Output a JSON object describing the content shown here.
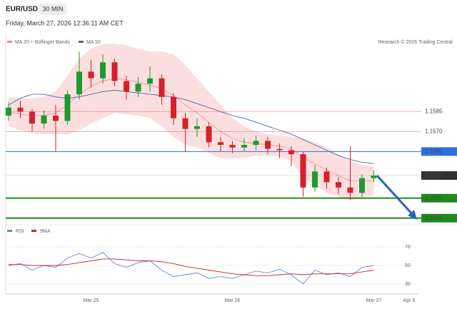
{
  "header": {
    "symbol": "EUR/USD",
    "interval": "30 MIN",
    "datetime": "Friday, March 27, 2026 12:36:11 AM CET",
    "credit": "Research © 2026 Trading Central"
  },
  "chart_data": [
    {
      "type": "candlestick",
      "categories": [
        null,
        null,
        null,
        null,
        null,
        null,
        null,
        "Mar 25",
        null,
        null,
        null,
        null,
        null,
        null,
        null,
        null,
        null,
        null,
        null,
        "Mar 26",
        null,
        null,
        null,
        null,
        null,
        null,
        null,
        null,
        null,
        null,
        null,
        "Mar 27",
        null,
        null,
        "Apr 6"
      ],
      "open": [
        1.1582,
        1.1588,
        1.1585,
        1.1576,
        1.1582,
        1.1578,
        1.1598,
        1.1615,
        1.161,
        1.1622,
        1.1608,
        1.16,
        1.1606,
        1.161,
        1.1596,
        1.158,
        1.1572,
        1.1574,
        1.1562,
        1.156,
        1.1558,
        1.156,
        1.1563,
        1.1557,
        1.1556,
        1.1553,
        1.1528,
        1.154,
        1.1532,
        1.1528,
        1.1524,
        1.1535,
        null,
        null,
        null
      ],
      "high": [
        1.1592,
        1.1593,
        1.1587,
        1.1586,
        1.159,
        1.1601,
        1.163,
        1.1624,
        1.1628,
        1.1625,
        1.1612,
        1.1611,
        1.1619,
        1.1613,
        1.1599,
        1.1584,
        1.158,
        1.1577,
        1.1566,
        1.1563,
        1.1565,
        1.1567,
        1.1566,
        1.1561,
        1.1559,
        1.1555,
        1.1545,
        1.1543,
        1.1536,
        1.1559,
        1.1538,
        1.1541,
        null,
        null,
        null
      ],
      "low": [
        1.1578,
        1.158,
        1.157,
        1.1572,
        1.1555,
        1.1575,
        1.1594,
        1.1603,
        1.1606,
        1.1604,
        1.1594,
        1.1596,
        1.16,
        1.159,
        1.1575,
        1.1555,
        1.1566,
        1.1558,
        1.1555,
        1.1554,
        1.1555,
        1.1556,
        1.1553,
        1.155,
        1.1544,
        1.1521,
        1.1525,
        1.1527,
        1.1523,
        1.1519,
        1.1521,
        1.1532,
        null,
        null,
        null
      ],
      "close": [
        1.1588,
        1.1585,
        1.1576,
        1.1582,
        1.1578,
        1.1598,
        1.1615,
        1.161,
        1.1622,
        1.1608,
        1.16,
        1.1606,
        1.161,
        1.1596,
        1.158,
        1.1572,
        1.1574,
        1.1562,
        1.156,
        1.1558,
        1.156,
        1.1563,
        1.1557,
        1.1556,
        1.1553,
        1.1528,
        1.154,
        1.1532,
        1.1528,
        1.1524,
        1.1535,
        1.1537,
        null,
        null,
        null
      ],
      "up_color": "#1f9a2e",
      "down_color": "#d6202c",
      "bands": {
        "name": "MA 20 + Bollinger Bands",
        "color": "#f28b8b",
        "mid": [
          1.1585,
          1.1583,
          1.1582,
          1.1582,
          1.1584,
          1.159,
          1.1598,
          1.1604,
          1.1608,
          1.161,
          1.1609,
          1.1607,
          1.1605,
          1.1602,
          1.1597,
          1.159,
          1.1584,
          1.1577,
          1.157,
          1.1565,
          1.1562,
          1.1561,
          1.156,
          1.1559,
          1.1557,
          1.155,
          1.1546,
          1.1541,
          1.1537,
          1.1533,
          1.1533,
          1.1533,
          null,
          null,
          null
        ],
        "upper": [
          1.1596,
          1.1595,
          1.1595,
          1.1596,
          1.16,
          1.1612,
          1.1625,
          1.1632,
          1.1636,
          1.1636,
          1.1635,
          1.1632,
          1.163,
          1.163,
          1.1628,
          1.162,
          1.161,
          1.16,
          1.159,
          1.158,
          1.1574,
          1.157,
          1.1568,
          1.1567,
          1.1566,
          1.1565,
          1.1562,
          1.1558,
          1.1553,
          1.1548,
          1.1545,
          1.1544,
          null,
          null,
          null
        ],
        "lower": [
          1.1574,
          1.1571,
          1.1569,
          1.1568,
          1.1568,
          1.1568,
          1.1571,
          1.1576,
          1.158,
          1.1584,
          1.1583,
          1.1582,
          1.158,
          1.1574,
          1.1566,
          1.156,
          1.1558,
          1.1554,
          1.155,
          1.155,
          1.155,
          1.1552,
          1.1552,
          1.1551,
          1.1548,
          1.1535,
          1.153,
          1.1524,
          1.1521,
          1.1518,
          1.1521,
          1.1522,
          null,
          null,
          null
        ]
      },
      "series": [
        {
          "name": "MA 50",
          "color": "#4f63b0",
          "values": [
            1.159,
            1.1595,
            1.1598,
            1.1598,
            1.1596,
            1.1595,
            1.1596,
            1.1598,
            1.16,
            1.1601,
            1.16,
            1.1599,
            1.1598,
            1.1597,
            1.1596,
            1.1594,
            1.1591,
            1.1588,
            1.1585,
            1.1582,
            1.158,
            1.1577,
            1.1574,
            1.1571,
            1.1568,
            1.1564,
            1.156,
            1.1556,
            1.1552,
            1.1549,
            1.1547,
            1.1546,
            null,
            null,
            null
          ]
        }
      ],
      "ylim": [
        1.15,
        1.1642
      ],
      "levels": [
        {
          "value": 1.1585,
          "color": "#e05050",
          "style": "resistance"
        },
        {
          "value": 1.157,
          "label": "1.1570",
          "color": "#e05050",
          "style": "resistance"
        },
        {
          "value": 1.1555,
          "color": "#2f6fe0",
          "style": "pivot"
        },
        {
          "value": 1.1537,
          "color": "#333333",
          "style": "last"
        },
        {
          "value": 1.152,
          "label": "1.1520",
          "color": "#1e8a1e",
          "style": "support"
        },
        {
          "value": 1.1505,
          "color": "#1e8a1e",
          "style": "support"
        }
      ]
    },
    {
      "type": "line",
      "series": [
        {
          "name": "RSI",
          "color": "#5b8be0",
          "values": [
            50,
            52,
            45,
            50,
            48,
            58,
            63,
            58,
            64,
            52,
            48,
            53,
            55,
            45,
            38,
            40,
            42,
            36,
            38,
            36,
            40,
            44,
            42,
            46,
            40,
            30,
            45,
            40,
            42,
            38,
            48,
            50,
            null,
            null,
            null
          ]
        },
        {
          "name": "9MA",
          "color": "#d6202c",
          "values": [
            51,
            51,
            50,
            50,
            50,
            51,
            53,
            55,
            57,
            57,
            56,
            55,
            55,
            54,
            52,
            49,
            47,
            45,
            43,
            41,
            40,
            39,
            39,
            40,
            41,
            40,
            41,
            41,
            41,
            41,
            43,
            45,
            null,
            null,
            null
          ]
        }
      ],
      "ylim": [
        20,
        80
      ],
      "yticks": [
        30,
        50,
        70
      ],
      "grid": true
    }
  ]
}
